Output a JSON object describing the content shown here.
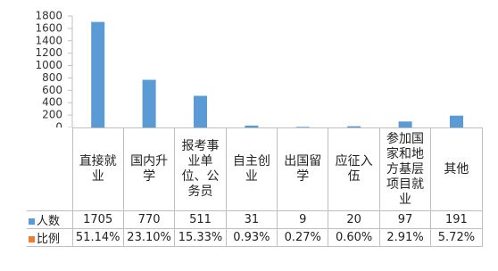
{
  "chart_data": {
    "type": "bar",
    "categories": [
      "直接就业",
      "国内升学",
      "报考事业单位、公务员",
      "自主创业",
      "出国留学",
      "应征入伍",
      "参加国家和地方基层项目就业",
      "其他"
    ],
    "series": [
      {
        "name": "人数",
        "color": "#5b9bd5",
        "values": [
          1705,
          770,
          511,
          31,
          9,
          20,
          97,
          191
        ]
      },
      {
        "name": "比例",
        "color": "#ed7d31",
        "values": [
          0.5114,
          0.231,
          0.1533,
          0.0093,
          0.0027,
          0.006,
          0.0291,
          0.0572
        ],
        "value_labels": [
          "51.14%",
          "23.10%",
          "15.33%",
          "0.93%",
          "0.27%",
          "0.60%",
          "2.91%",
          "5.72%"
        ]
      }
    ],
    "ylim": [
      0,
      1800
    ],
    "yticks": [
      0,
      200,
      400,
      600,
      800,
      1000,
      1200,
      1400,
      1600,
      1800
    ]
  }
}
